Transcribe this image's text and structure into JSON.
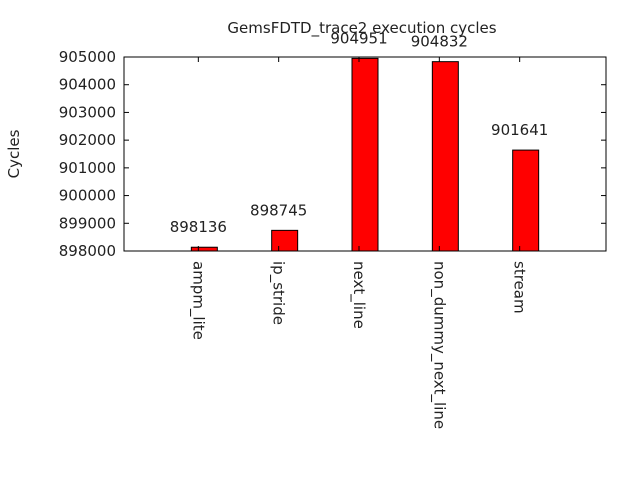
{
  "chart_data": {
    "type": "bar",
    "title": "GemsFDTD_trace2 execution cycles",
    "xlabel": "",
    "ylabel": "Cycles",
    "categories": [
      "ampm_lite",
      "ip_stride",
      "next_line",
      "non_dummy_next_line",
      "stream"
    ],
    "values": [
      898136,
      898745,
      904951,
      904832,
      901641
    ],
    "data_labels": [
      "898136",
      "898745",
      "904951",
      "904832",
      "901641"
    ],
    "ylim": [
      898000,
      905000
    ],
    "yticks": [
      898000,
      899000,
      900000,
      901000,
      902000,
      903000,
      904000,
      905000
    ],
    "ytick_labels": [
      "898000",
      "899000",
      "900000",
      "901000",
      "902000",
      "903000",
      "904000",
      "905000"
    ],
    "grid": false,
    "legend": "none",
    "bar_color": "#ff0000",
    "bar_edge_color": "#000000"
  }
}
